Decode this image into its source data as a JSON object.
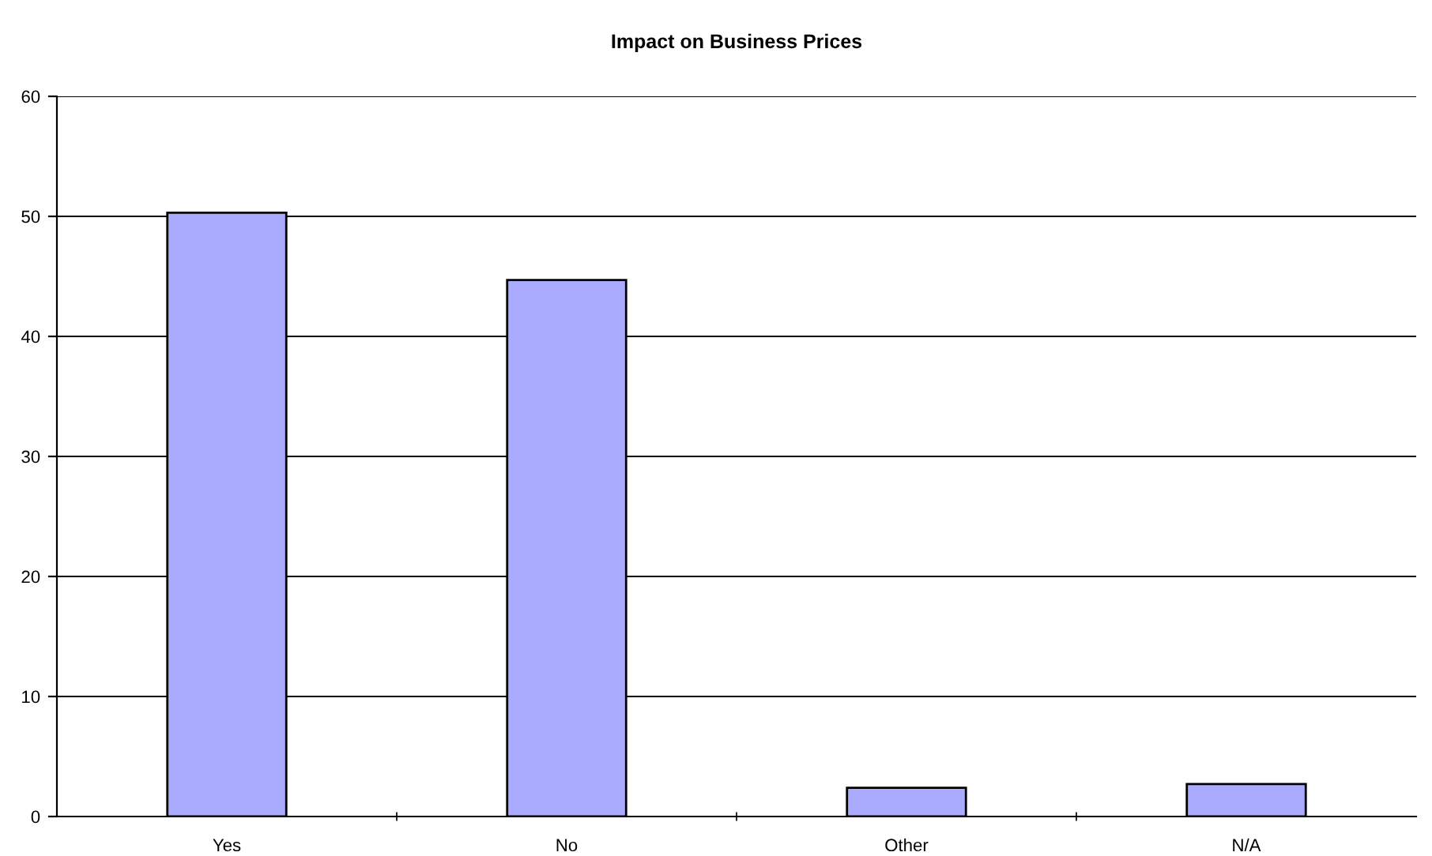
{
  "chart_data": {
    "type": "bar",
    "title": "Impact on Business Prices",
    "categories": [
      "Yes",
      "No",
      "Other",
      "N/A"
    ],
    "values": [
      50.3,
      44.7,
      2.4,
      2.7
    ],
    "color": "#aaaaff",
    "ylim": [
      0,
      60
    ],
    "yticks": [
      0,
      10,
      20,
      30,
      40,
      50,
      60
    ],
    "grid": "y",
    "legend": false
  }
}
